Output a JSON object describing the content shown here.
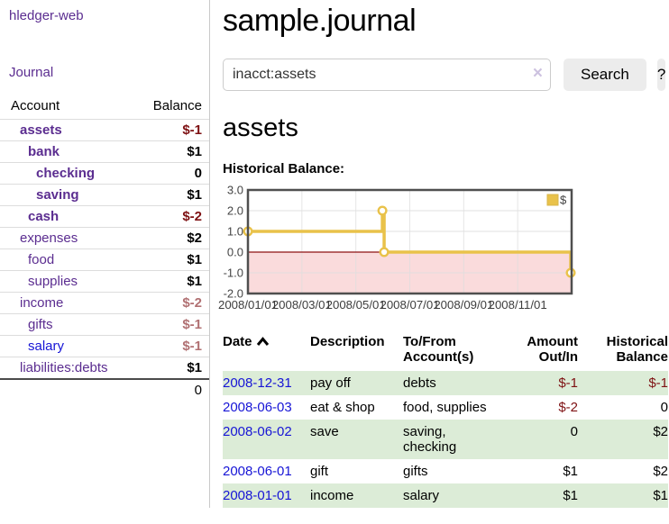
{
  "app": {
    "brand": "hledger-web"
  },
  "colors": {
    "link_purple": "#5b2d90",
    "link_blue": "#1715d6",
    "negative_strong": "#7e1113",
    "negative_soft": "#b17173",
    "row_green": "#dcecd7",
    "series_gold": "#e9c24a",
    "negative_region_pink": "#fadbdc",
    "zero_line_red": "#8e1212"
  },
  "sidebar": {
    "brand": "hledger-web",
    "journal_link": "Journal",
    "accounts_table": {
      "headers": {
        "account": "Account",
        "balance": "Balance"
      },
      "rows": [
        {
          "name": "assets",
          "depth": 1,
          "bold": true,
          "link_color": "purple",
          "balance": "$-1",
          "balance_style": "neg-strong"
        },
        {
          "name": "bank",
          "depth": 2,
          "bold": true,
          "link_color": "purple",
          "balance": "$1",
          "balance_style": "pos"
        },
        {
          "name": "checking",
          "depth": 3,
          "bold": true,
          "link_color": "purple",
          "balance": "0",
          "balance_style": "pos"
        },
        {
          "name": "saving",
          "depth": 3,
          "bold": true,
          "link_color": "purple",
          "balance": "$1",
          "balance_style": "pos"
        },
        {
          "name": "cash",
          "depth": 2,
          "bold": true,
          "link_color": "purple",
          "balance": "$-2",
          "balance_style": "neg-strong"
        },
        {
          "name": "expenses",
          "depth": 1,
          "bold": false,
          "link_color": "purple",
          "balance": "$2",
          "balance_style": "pos"
        },
        {
          "name": "food",
          "depth": 2,
          "bold": false,
          "link_color": "purple",
          "balance": "$1",
          "balance_style": "pos"
        },
        {
          "name": "supplies",
          "depth": 2,
          "bold": false,
          "link_color": "purple",
          "balance": "$1",
          "balance_style": "pos"
        },
        {
          "name": "income",
          "depth": 1,
          "bold": false,
          "link_color": "purple",
          "balance": "$-2",
          "balance_style": "neg-soft"
        },
        {
          "name": "gifts",
          "depth": 2,
          "bold": false,
          "link_color": "purple",
          "balance": "$-1",
          "balance_style": "neg-soft"
        },
        {
          "name": "salary",
          "depth": 2,
          "bold": false,
          "link_color": "blue",
          "balance": "$-1",
          "balance_style": "neg-soft"
        },
        {
          "name": "liabilities:debts",
          "depth": 1,
          "bold": false,
          "link_color": "purple",
          "balance": "$1",
          "balance_style": "pos"
        }
      ],
      "total": "0"
    }
  },
  "main": {
    "title": "sample.journal",
    "search": {
      "value": "inacct:assets",
      "clear_icon": "×",
      "search_button": "Search",
      "help_button": "?"
    },
    "account_heading": "assets",
    "chart_label": "Historical Balance:",
    "register_table": {
      "headers": {
        "date": "Date",
        "description": "Description",
        "tofrom": "To/From Account(s)",
        "amount": "Amount Out/In",
        "balance": "Historical Balance"
      },
      "rows": [
        {
          "date": "2008-12-31",
          "description": "pay off",
          "accounts": "debts",
          "amount": "$-1",
          "amount_neg": true,
          "balance": "$-1",
          "balance_neg": true
        },
        {
          "date": "2008-06-03",
          "description": "eat & shop",
          "accounts": "food, supplies",
          "amount": "$-2",
          "amount_neg": true,
          "balance": "0",
          "balance_neg": false
        },
        {
          "date": "2008-06-02",
          "description": "save",
          "accounts": "saving, checking",
          "amount": "0",
          "amount_neg": false,
          "balance": "$2",
          "balance_neg": false
        },
        {
          "date": "2008-06-01",
          "description": "gift",
          "accounts": "gifts",
          "amount": "$1",
          "amount_neg": false,
          "balance": "$2",
          "balance_neg": false
        },
        {
          "date": "2008-01-01",
          "description": "income",
          "accounts": "salary",
          "amount": "$1",
          "amount_neg": false,
          "balance": "$1",
          "balance_neg": false
        }
      ]
    }
  },
  "chart_data": {
    "type": "line",
    "title": "Historical Balance:",
    "step": true,
    "legend": "$",
    "legend_position": "top-right",
    "grid": true,
    "ylim": [
      -2.0,
      3.0
    ],
    "y_ticks": [
      3.0,
      2.0,
      1.0,
      0.0,
      -1.0,
      -2.0
    ],
    "x_ticks": [
      "2008/01/01",
      "2008/03/01",
      "2008/05/01",
      "2008/07/01",
      "2008/09/01",
      "2008/11/01"
    ],
    "x_range": [
      "2008-01-01",
      "2009-01-01"
    ],
    "series": [
      {
        "name": "$",
        "color": "#e9c24a",
        "points": [
          {
            "date": "2008-01-01",
            "value": 1
          },
          {
            "date": "2008-06-01",
            "value": 2
          },
          {
            "date": "2008-06-03",
            "value": 0
          },
          {
            "date": "2008-12-31",
            "value": -1
          }
        ]
      }
    ]
  }
}
